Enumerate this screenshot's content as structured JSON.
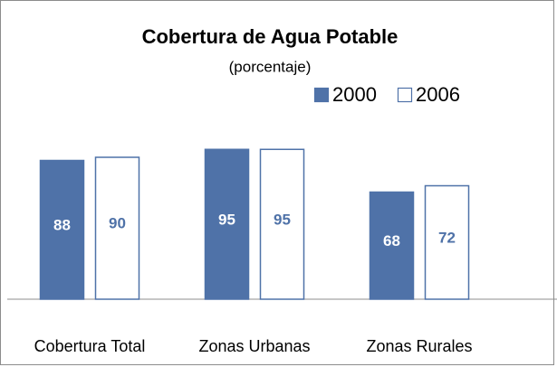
{
  "chart_data": {
    "type": "bar",
    "title": "Cobertura de Agua Potable",
    "subtitle": "(porcentaje)",
    "categories": [
      "Cobertura Total",
      "Zonas Urbanas",
      "Zonas Rurales"
    ],
    "series": [
      {
        "name": "2000",
        "color": "#4f72a8",
        "values": [
          88,
          95,
          68
        ]
      },
      {
        "name": "2006",
        "color": "#4f72a8",
        "values": [
          90,
          95,
          72
        ]
      }
    ],
    "ylim": [
      0,
      100
    ],
    "legend": "top-right"
  }
}
